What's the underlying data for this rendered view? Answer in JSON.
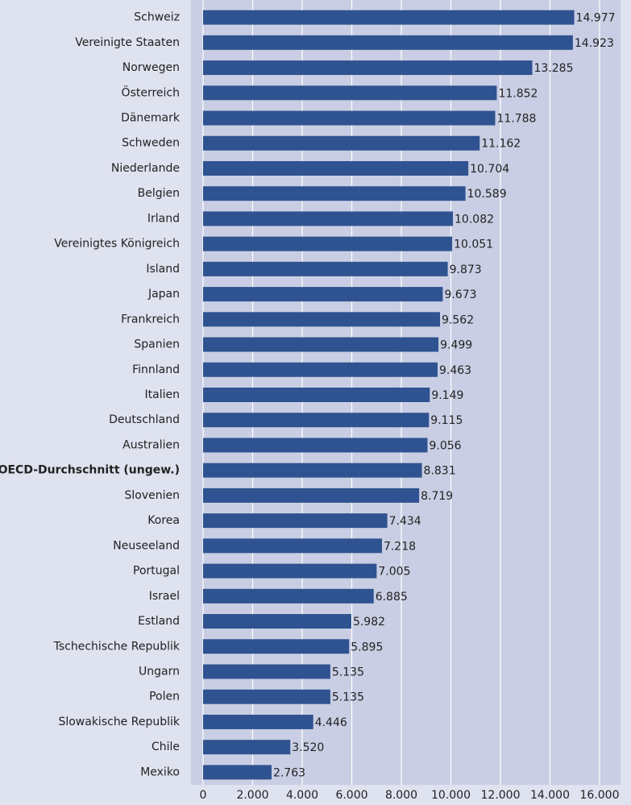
{
  "chart_data": {
    "type": "bar",
    "orientation": "horizontal",
    "categories": [
      "Schweiz",
      "Vereinigte Staaten",
      "Norwegen",
      "Österreich",
      "Dänemark",
      "Schweden",
      "Niederlande",
      "Belgien",
      "Irland",
      "Vereinigtes Königreich",
      "Island",
      "Japan",
      "Frankreich",
      "Spanien",
      "Finnland",
      "Italien",
      "Deutschland",
      "Australien",
      "OECD-Durchschnitt (ungew.)",
      "Slovenien",
      "Korea",
      "Neuseeland",
      "Portugal",
      "Israel",
      "Estland",
      "Tschechische Republik",
      "Ungarn",
      "Polen",
      "Slowakische Republik",
      "Chile",
      "Mexiko"
    ],
    "values": [
      14977,
      14923,
      13285,
      11852,
      11788,
      11162,
      10704,
      10589,
      10082,
      10051,
      9873,
      9673,
      9562,
      9499,
      9463,
      9149,
      9115,
      9056,
      8831,
      8719,
      7434,
      7218,
      7005,
      6885,
      5982,
      5895,
      5135,
      5135,
      4446,
      3520,
      2763
    ],
    "value_labels": [
      "14.977",
      "14.923",
      "13.285",
      "11.852",
      "11.788",
      "11.162",
      "10.704",
      "10.589",
      "10.082",
      "10.051",
      "9.873",
      "9.673",
      "9.562",
      "9.499",
      "9.463",
      "9.149",
      "9.115",
      "9.056",
      "8.831",
      "8.719",
      "7.434",
      "7.218",
      "7.005",
      "6.885",
      "5.982",
      "5.895",
      "5.135",
      "5.135",
      "4.446",
      "3.520",
      "2.763"
    ],
    "color": "#2f5390",
    "bold_categories": [
      18
    ],
    "xlim": [
      0,
      16000
    ],
    "xticks": [
      0,
      {
        "value": 2000,
        "label": "2.000"
      },
      {
        "value": 4000,
        "label": "4.000"
      },
      {
        "value": 6000,
        "label": "6.000"
      },
      {
        "value": 8000,
        "label": "8.000"
      },
      {
        "value": 10000,
        "label": "10.000"
      },
      {
        "value": 12000,
        "label": "12.000"
      },
      {
        "value": 14000,
        "label": "14.000"
      },
      {
        "value": 16000,
        "label": "16.000"
      }
    ],
    "grid": true
  }
}
